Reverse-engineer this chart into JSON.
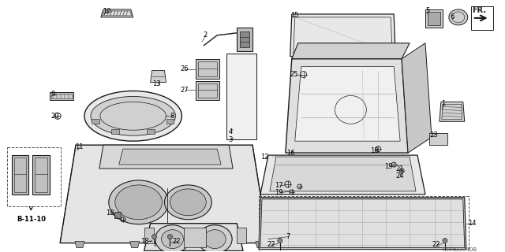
{
  "bg": "#ffffff",
  "lc": "#1a1a1a",
  "fig_w": 6.4,
  "fig_h": 3.2,
  "dpi": 100,
  "diagram_code": "TX44B3740B"
}
